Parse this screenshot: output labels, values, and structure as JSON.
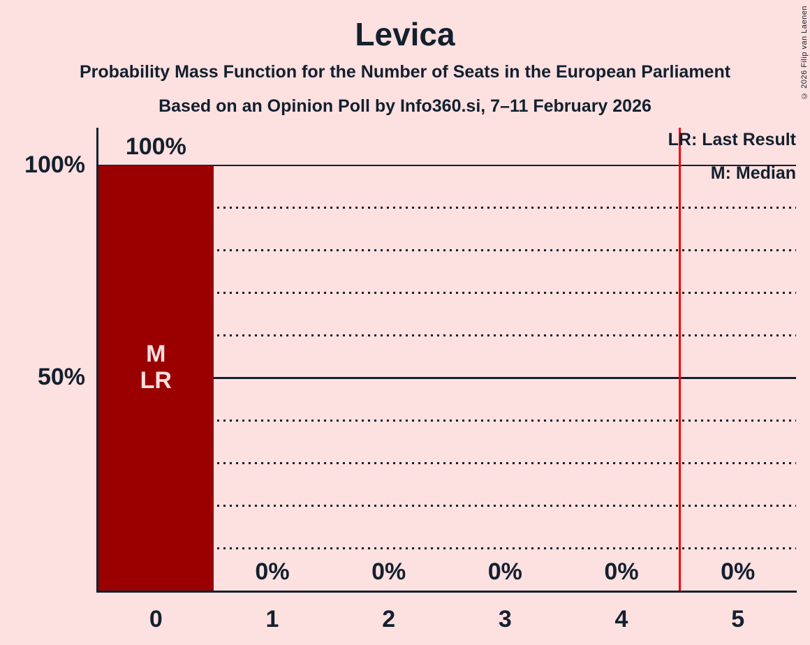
{
  "title": "Levica",
  "subtitle_line1": "Probability Mass Function for the Number of Seats in the European Parliament",
  "subtitle_line2": "Based on an Opinion Poll by Info360.si, 7–11 February 2026",
  "copyright": "© 2026 Filip van Laenen",
  "legend": {
    "last_result": "LR: Last Result",
    "median": "M: Median"
  },
  "y_axis": {
    "labels": [
      "100%",
      "50%"
    ]
  },
  "colors": {
    "background": "#fde0e0",
    "bar": "#9a0000",
    "axis_and_text": "#13202e",
    "last_result_line": "#f40000",
    "bar_inner_text": "#fde0e0"
  },
  "chart_data": {
    "type": "bar",
    "title": "Levica",
    "categories": [
      "0",
      "1",
      "2",
      "3",
      "4",
      "5"
    ],
    "values": [
      100,
      0,
      0,
      0,
      0,
      0
    ],
    "bar_labels": [
      "100%",
      "0%",
      "0%",
      "0%",
      "0%",
      "0%"
    ],
    "ylim": [
      0,
      100
    ],
    "y_tick_labels": [
      "100%",
      "50%"
    ],
    "y_gridlines_solid_pct": [
      100,
      50
    ],
    "y_gridlines_dotted_pct": [
      90,
      80,
      70,
      60,
      40,
      30,
      20,
      10
    ],
    "grid": "horizontal only",
    "legend_position": "top-right",
    "annotations": {
      "median_label": "M",
      "last_result_label": "LR",
      "marker_bar_index": 0,
      "last_result_line_position": 4.5
    }
  }
}
